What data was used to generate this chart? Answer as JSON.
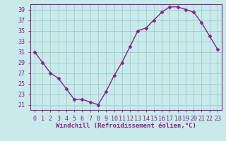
{
  "x": [
    0,
    1,
    2,
    3,
    4,
    5,
    6,
    7,
    8,
    9,
    10,
    11,
    12,
    13,
    14,
    15,
    16,
    17,
    18,
    19,
    20,
    21,
    22,
    23
  ],
  "y": [
    31,
    29,
    27,
    26,
    24,
    22,
    22,
    21.5,
    21,
    23.5,
    26.5,
    29,
    32,
    35,
    35.5,
    37,
    38.5,
    39.5,
    39.5,
    39,
    38.5,
    36.5,
    34,
    31.5
  ],
  "line_color": "#882288",
  "marker": "D",
  "marker_size": 2.5,
  "bg_color": "#c8eaea",
  "grid_color": "#a0cccc",
  "xlabel": "Windchill (Refroidissement éolien,°C)",
  "ylabel_ticks": [
    21,
    23,
    25,
    27,
    29,
    31,
    33,
    35,
    37,
    39
  ],
  "ylim": [
    20,
    40
  ],
  "xlim": [
    -0.5,
    23.5
  ],
  "xlabel_fontsize": 6.5,
  "tick_fontsize": 6,
  "line_width": 1.0,
  "spine_color": "#882288"
}
